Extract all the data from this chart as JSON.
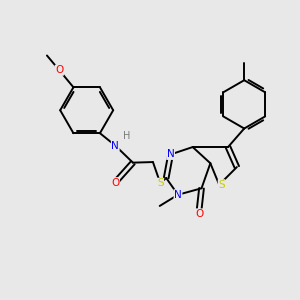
{
  "background_color": "#e8e8e8",
  "bond_color": "#000000",
  "atom_colors": {
    "N": "#0000ff",
    "O": "#ff0000",
    "S": "#cccc00",
    "H": "#7a7a7a",
    "C": "#000000"
  },
  "lw": 1.4,
  "fontsize": 7.5
}
